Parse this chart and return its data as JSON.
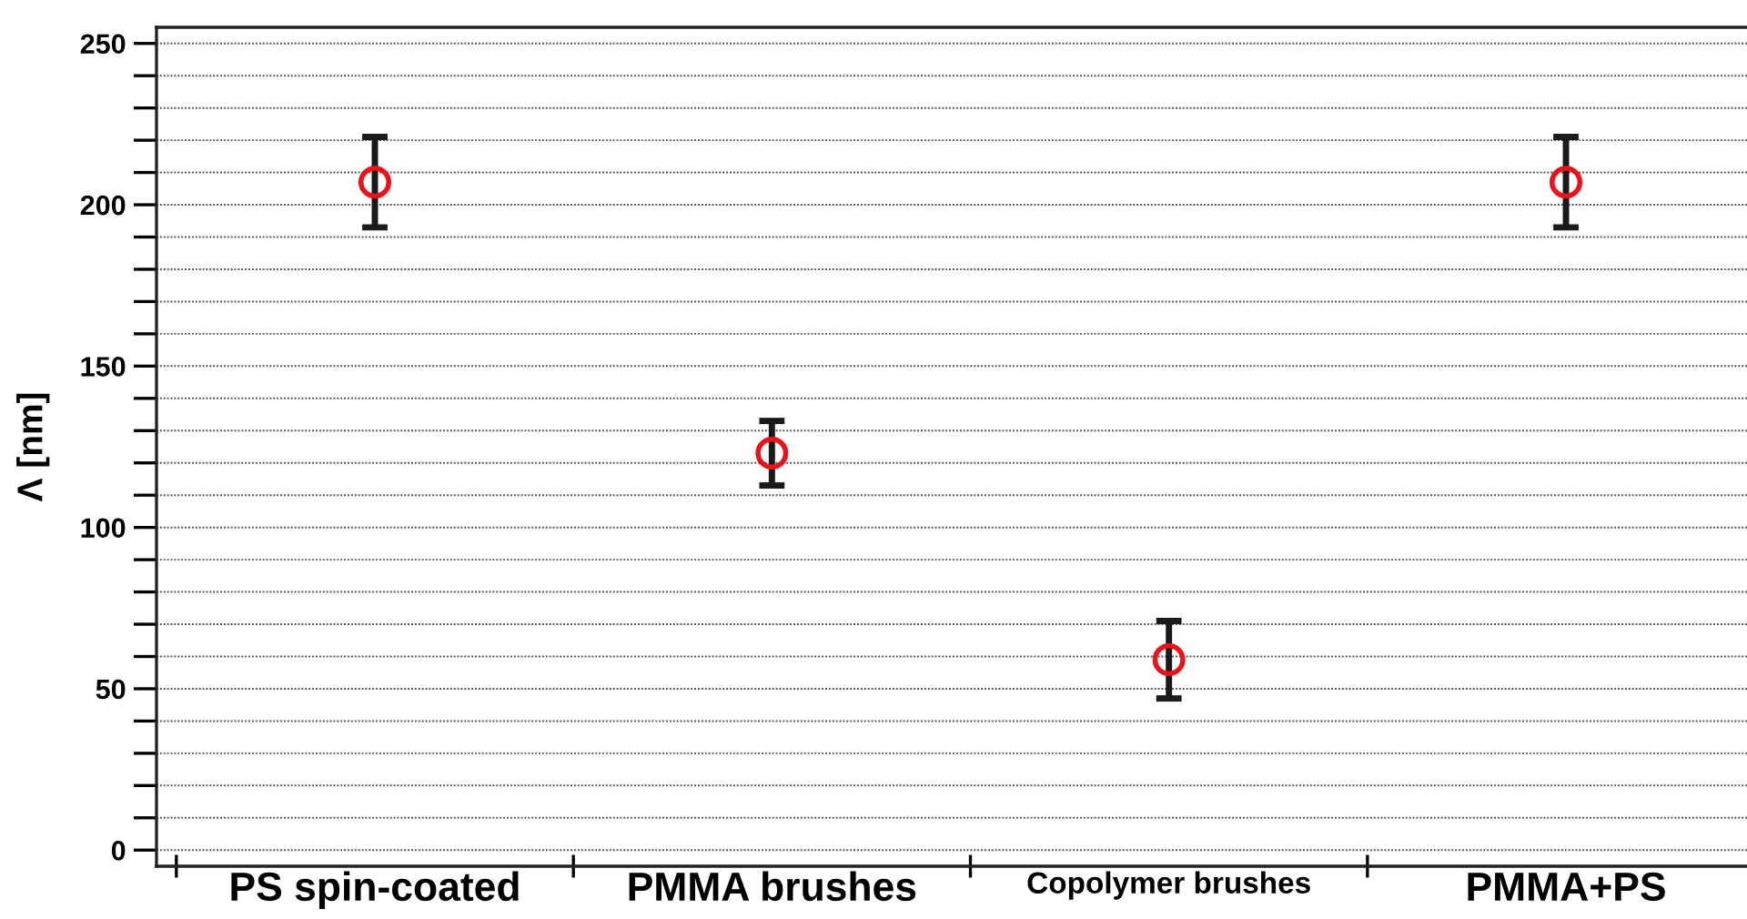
{
  "chart_data": {
    "type": "scatter",
    "ylabel": "Λ [nm]",
    "categories": [
      "PS spin-coated",
      "PMMA brushes",
      "Copolymer brushes",
      "PMMA+PS"
    ],
    "series": [
      {
        "color": "#e8141c",
        "values": [
          207,
          123,
          59,
          207
        ],
        "errors": [
          14,
          10,
          12,
          14
        ]
      }
    ],
    "ylim": [
      -5,
      255
    ],
    "yticks": [
      0,
      {
        "value": 10,
        "label": null
      },
      {
        "value": 20,
        "label": null
      },
      {
        "value": 30,
        "label": null
      },
      {
        "value": 40,
        "label": null
      },
      50,
      {
        "value": 60,
        "label": null
      },
      {
        "value": 70,
        "label": null
      },
      {
        "value": 80,
        "label": null
      },
      {
        "value": 90,
        "label": null
      },
      100,
      {
        "value": 110,
        "label": null
      },
      {
        "value": 120,
        "label": null
      },
      {
        "value": 130,
        "label": null
      },
      {
        "value": 140,
        "label": null
      },
      150,
      {
        "value": 160,
        "label": null
      },
      {
        "value": 170,
        "label": null
      },
      {
        "value": 180,
        "label": null
      },
      {
        "value": 190,
        "label": null
      },
      200,
      {
        "value": 210,
        "label": null
      },
      {
        "value": 220,
        "label": null
      },
      {
        "value": 230,
        "label": null
      },
      {
        "value": 240,
        "label": null
      },
      250
    ],
    "grid": "y",
    "marker": "circle",
    "legend": false
  }
}
